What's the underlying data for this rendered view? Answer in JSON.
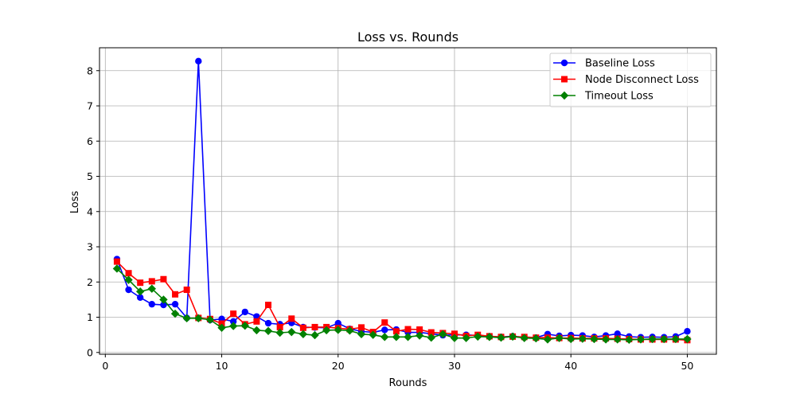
{
  "chart_data": {
    "type": "line",
    "title": "Loss vs. Rounds",
    "xlabel": "Rounds",
    "ylabel": "Loss",
    "xlim": [
      -0.5,
      52.5
    ],
    "ylim": [
      -0.05,
      8.65
    ],
    "xticks": [
      0,
      10,
      20,
      30,
      40,
      50
    ],
    "yticks": [
      0,
      1,
      2,
      3,
      4,
      5,
      6,
      7,
      8
    ],
    "grid": true,
    "legend_position": "top-right",
    "x": [
      1,
      2,
      3,
      4,
      5,
      6,
      7,
      8,
      9,
      10,
      11,
      12,
      13,
      14,
      15,
      16,
      17,
      18,
      19,
      20,
      21,
      22,
      23,
      24,
      25,
      26,
      27,
      28,
      29,
      30,
      31,
      32,
      33,
      34,
      35,
      36,
      37,
      38,
      39,
      40,
      41,
      42,
      43,
      44,
      45,
      46,
      47,
      48,
      49,
      50
    ],
    "series": [
      {
        "name": "Baseline Loss",
        "color": "#0000ff",
        "marker": "circle",
        "values": [
          2.65,
          1.78,
          1.56,
          1.37,
          1.35,
          1.37,
          0.98,
          8.27,
          0.92,
          0.95,
          0.88,
          1.15,
          1.02,
          0.83,
          0.8,
          0.84,
          0.72,
          0.71,
          0.7,
          0.83,
          0.67,
          0.6,
          0.57,
          0.64,
          0.65,
          0.57,
          0.57,
          0.53,
          0.49,
          0.5,
          0.5,
          0.48,
          0.46,
          0.44,
          0.46,
          0.43,
          0.42,
          0.52,
          0.47,
          0.49,
          0.48,
          0.44,
          0.48,
          0.53,
          0.45,
          0.43,
          0.44,
          0.43,
          0.45,
          0.6
        ]
      },
      {
        "name": "Node Disconnect Loss",
        "color": "#ff0000",
        "marker": "square",
        "values": [
          2.58,
          2.25,
          1.98,
          2.02,
          2.08,
          1.65,
          1.78,
          0.98,
          0.95,
          0.82,
          1.1,
          0.8,
          0.88,
          1.35,
          0.72,
          0.96,
          0.7,
          0.72,
          0.72,
          0.69,
          0.66,
          0.71,
          0.58,
          0.85,
          0.6,
          0.66,
          0.65,
          0.57,
          0.55,
          0.53,
          0.47,
          0.5,
          0.46,
          0.44,
          0.45,
          0.44,
          0.42,
          0.42,
          0.41,
          0.41,
          0.4,
          0.4,
          0.4,
          0.39,
          0.38,
          0.37,
          0.37,
          0.37,
          0.37,
          0.35
        ]
      },
      {
        "name": "Timeout Loss",
        "color": "#008000",
        "marker": "diamond",
        "values": [
          2.38,
          2.06,
          1.73,
          1.81,
          1.5,
          1.1,
          0.97,
          0.97,
          0.93,
          0.7,
          0.75,
          0.76,
          0.63,
          0.61,
          0.56,
          0.58,
          0.52,
          0.49,
          0.63,
          0.64,
          0.62,
          0.52,
          0.5,
          0.44,
          0.44,
          0.44,
          0.48,
          0.42,
          0.52,
          0.41,
          0.41,
          0.45,
          0.44,
          0.42,
          0.45,
          0.41,
          0.4,
          0.37,
          0.41,
          0.38,
          0.39,
          0.38,
          0.37,
          0.37,
          0.36,
          0.37,
          0.38,
          0.38,
          0.38,
          0.38
        ]
      }
    ]
  }
}
